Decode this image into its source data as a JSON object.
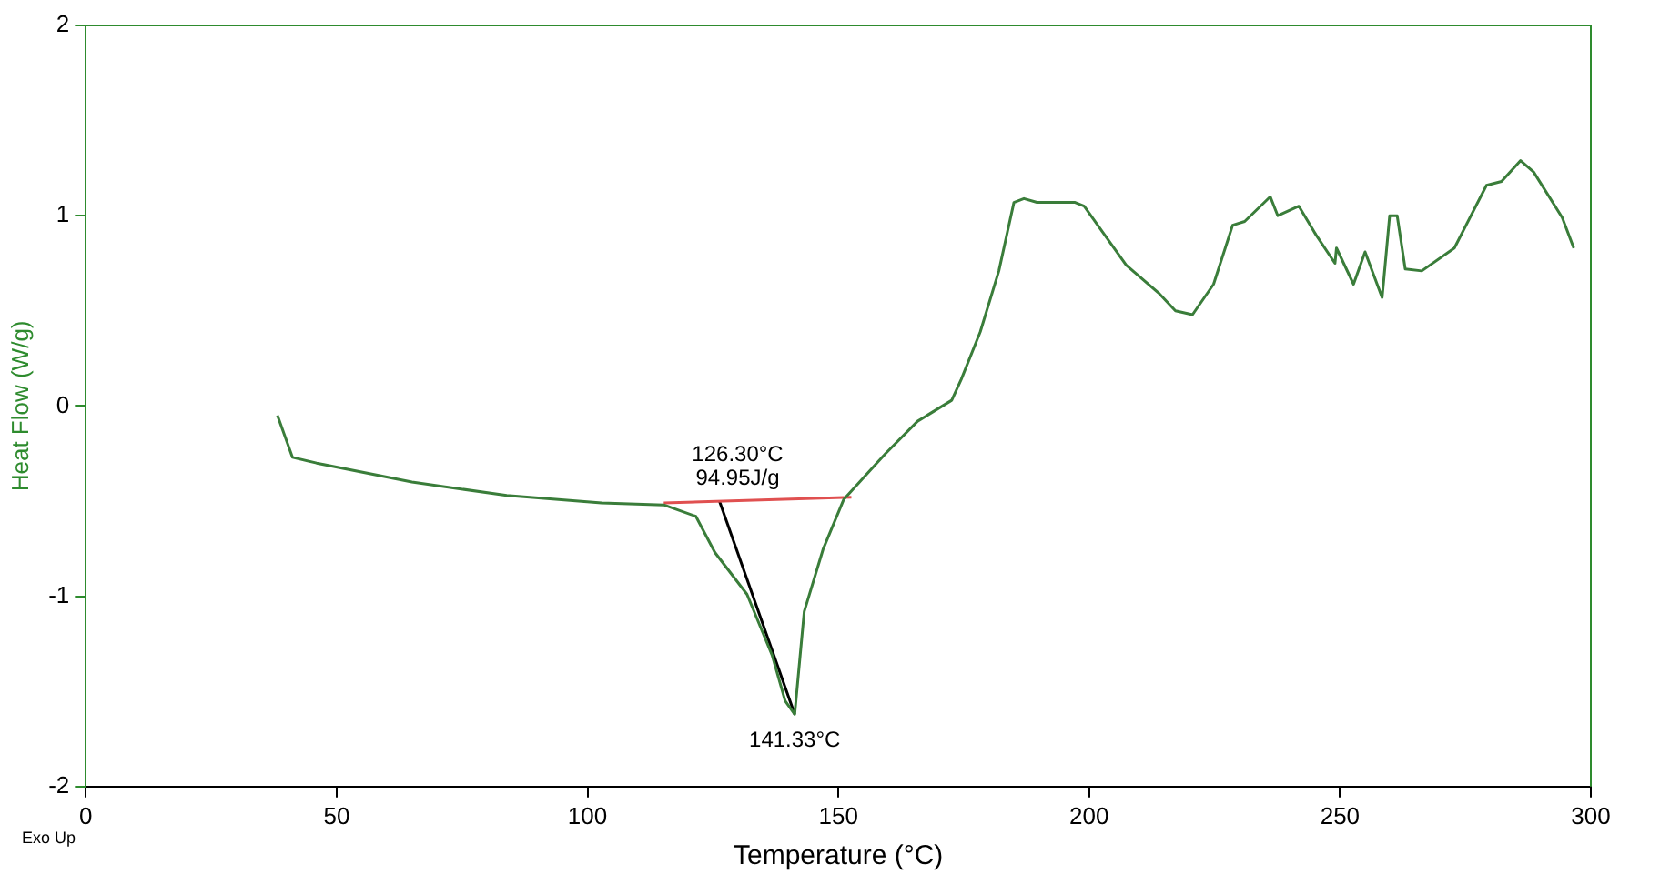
{
  "chart_data": {
    "type": "line",
    "xlabel": "Temperature (°C)",
    "ylabel": "Heat Flow (W/g)",
    "xlim": [
      0,
      300
    ],
    "xticks": [
      0,
      50,
      100,
      150,
      200,
      250,
      300
    ],
    "ylim": [
      -2,
      2
    ],
    "yticks": [
      -2,
      -1,
      0,
      1,
      2
    ],
    "grid": false,
    "legend": false,
    "marker": "none",
    "line_style": "solid",
    "series": [
      {
        "color": "#3a7d3a",
        "x": [
          38.2,
          41.2,
          46,
          65,
          83.9,
          102.8,
          115.2,
          121.6,
          125.4,
          131.8,
          136.8,
          139.4,
          141.3,
          143.2,
          147,
          151.1,
          159.4,
          165.8,
          172.6,
          174.5,
          178.3,
          182,
          185,
          187,
          189.6,
          197.2,
          199,
          207.4,
          214,
          217.2,
          220.6,
          224.8,
          228.6,
          231,
          236.1,
          237.6,
          241.8,
          245.2,
          249,
          249.3,
          252.7,
          255,
          258.4,
          259.9,
          261.4,
          263,
          266.3,
          272.8,
          279.2,
          282.2,
          286,
          288.6,
          294.3,
          296.6
        ],
        "values": [
          -0.05,
          -0.27,
          -0.3,
          -0.4,
          -0.47,
          -0.51,
          -0.52,
          -0.58,
          -0.77,
          -0.99,
          -1.31,
          -1.55,
          -1.62,
          -1.08,
          -0.75,
          -0.49,
          -0.25,
          -0.08,
          0.03,
          0.14,
          0.39,
          0.71,
          1.07,
          1.09,
          1.07,
          1.07,
          1.05,
          0.74,
          0.59,
          0.5,
          0.48,
          0.64,
          0.95,
          0.97,
          1.1,
          1.0,
          1.05,
          0.9,
          0.75,
          0.83,
          0.64,
          0.81,
          0.57,
          1.0,
          1.0,
          0.72,
          0.71,
          0.83,
          1.16,
          1.18,
          1.29,
          1.23,
          0.99,
          0.83
        ]
      },
      {
        "color": "#e05050",
        "x": [
          115.2,
          152.6
        ],
        "values": [
          -0.51,
          -0.48
        ]
      },
      {
        "color": "#000000",
        "x": [
          126.3,
          141.3
        ],
        "values": [
          -0.5,
          -1.62
        ]
      }
    ],
    "annotations": [
      "126.30°C",
      "94.95J/g",
      "141.33°C",
      "Exo Up"
    ]
  }
}
